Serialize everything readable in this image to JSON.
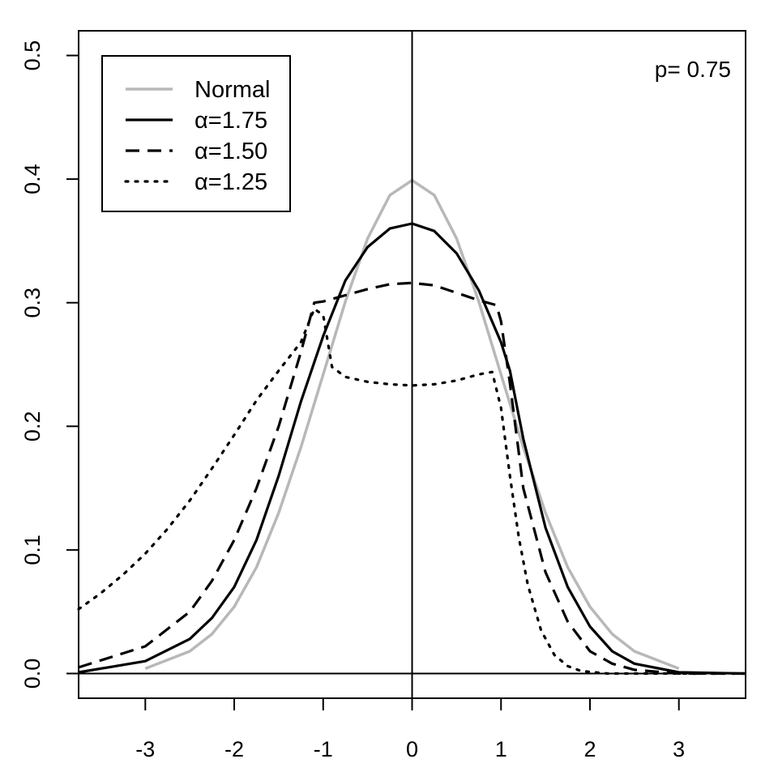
{
  "chart_data": {
    "type": "line",
    "title": "",
    "xlabel": "",
    "ylabel": "",
    "xlim": [
      -3.75,
      3.75
    ],
    "ylim": [
      -0.02,
      0.52
    ],
    "x_ticks": [
      -3,
      -2,
      -1,
      0,
      1,
      2,
      3
    ],
    "y_ticks": [
      0.0,
      0.1,
      0.2,
      0.3,
      0.4,
      0.5
    ],
    "x_tick_labels": [
      "-3",
      "-2",
      "-1",
      "0",
      "1",
      "2",
      "3"
    ],
    "y_tick_labels": [
      "0.0",
      "0.1",
      "0.2",
      "0.3",
      "0.4",
      "0.5"
    ],
    "annotation": "p= 0.75",
    "reference_lines": {
      "horizontal_y": 0.0,
      "vertical_x": 0.0
    },
    "legend_position": "top-left",
    "series": [
      {
        "name": "Normal",
        "legend_label": "Normal",
        "color": "#b8b8b8",
        "style": "solid",
        "x": [
          -3.0,
          -2.5,
          -2.25,
          -2.0,
          -1.75,
          -1.5,
          -1.25,
          -1.0,
          -0.75,
          -0.5,
          -0.25,
          0.0,
          0.25,
          0.5,
          0.75,
          1.0,
          1.25,
          1.5,
          1.75,
          2.0,
          2.25,
          2.5,
          3.0
        ],
        "y": [
          0.004,
          0.018,
          0.032,
          0.054,
          0.086,
          0.13,
          0.183,
          0.242,
          0.301,
          0.352,
          0.387,
          0.399,
          0.387,
          0.352,
          0.301,
          0.242,
          0.183,
          0.13,
          0.086,
          0.054,
          0.032,
          0.018,
          0.004
        ]
      },
      {
        "name": "alpha 1.75",
        "legend_label": "α=1.75",
        "color": "#000000",
        "style": "solid",
        "x": [
          -3.75,
          -3.0,
          -2.5,
          -2.25,
          -2.0,
          -1.75,
          -1.5,
          -1.25,
          -1.0,
          -0.75,
          -0.5,
          -0.25,
          0.0,
          0.25,
          0.5,
          0.75,
          1.0,
          1.1,
          1.25,
          1.5,
          1.75,
          2.0,
          2.25,
          2.5,
          3.0,
          3.75
        ],
        "y": [
          0.001,
          0.01,
          0.028,
          0.045,
          0.07,
          0.108,
          0.16,
          0.22,
          0.273,
          0.318,
          0.345,
          0.36,
          0.364,
          0.358,
          0.34,
          0.31,
          0.268,
          0.245,
          0.19,
          0.118,
          0.07,
          0.038,
          0.018,
          0.008,
          0.001,
          0.0
        ]
      },
      {
        "name": "alpha 1.50",
        "legend_label": "α=1.50",
        "color": "#000000",
        "style": "dashed",
        "x": [
          -3.75,
          -3.0,
          -2.5,
          -2.25,
          -2.0,
          -1.75,
          -1.5,
          -1.25,
          -1.1,
          -1.0,
          -0.75,
          -0.5,
          -0.25,
          0.0,
          0.25,
          0.5,
          0.75,
          0.95,
          1.0,
          1.1,
          1.25,
          1.5,
          1.75,
          2.0,
          2.25,
          2.5,
          3.0,
          3.75
        ],
        "y": [
          0.005,
          0.022,
          0.05,
          0.075,
          0.108,
          0.15,
          0.2,
          0.26,
          0.3,
          0.301,
          0.306,
          0.311,
          0.315,
          0.316,
          0.314,
          0.308,
          0.302,
          0.298,
          0.285,
          0.235,
          0.15,
          0.082,
          0.042,
          0.018,
          0.008,
          0.003,
          0.0,
          0.0
        ]
      },
      {
        "name": "alpha 1.25",
        "legend_label": "α=1.25",
        "color": "#000000",
        "style": "dotted",
        "x": [
          -3.75,
          -3.5,
          -3.25,
          -3.0,
          -2.75,
          -2.5,
          -2.25,
          -2.0,
          -1.75,
          -1.5,
          -1.25,
          -1.1,
          -1.0,
          -0.9,
          -0.75,
          -0.5,
          -0.25,
          0.0,
          0.25,
          0.5,
          0.75,
          0.9,
          1.0,
          1.1,
          1.2,
          1.3,
          1.45,
          1.6,
          1.75,
          1.9,
          2.2,
          2.5,
          3.75
        ],
        "y": [
          0.052,
          0.065,
          0.08,
          0.097,
          0.117,
          0.14,
          0.166,
          0.193,
          0.221,
          0.245,
          0.268,
          0.295,
          0.29,
          0.248,
          0.24,
          0.236,
          0.234,
          0.233,
          0.234,
          0.237,
          0.242,
          0.244,
          0.215,
          0.16,
          0.11,
          0.072,
          0.035,
          0.015,
          0.006,
          0.002,
          0.0,
          0.0,
          0.0
        ]
      }
    ]
  }
}
